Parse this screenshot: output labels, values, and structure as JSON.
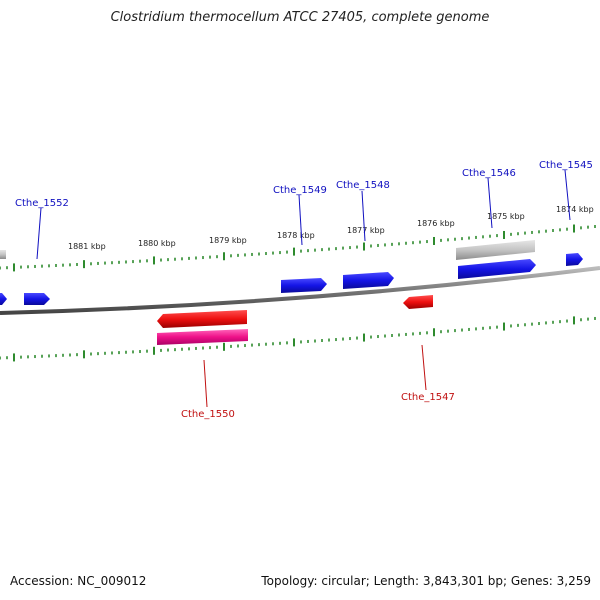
{
  "title": "Clostridium thermocellum ATCC 27405, complete genome",
  "footer": {
    "accession": "Accession: NC_009012",
    "summary": "Topology: circular; Length: 3,843,301 bp; Genes: 3,259"
  },
  "kbp_labels": [
    "1881 kbp",
    "1880 kbp",
    "1879 kbp",
    "1878 kbp",
    "1877 kbp",
    "1876 kbp",
    "1875 kbp",
    "1874 kbp"
  ],
  "gene_labels": [
    {
      "id": "cthe1552",
      "text": "Cthe_1552",
      "color": "#1010c0"
    },
    {
      "id": "cthe1549",
      "text": "Cthe_1549",
      "color": "#1010c0"
    },
    {
      "id": "cthe1548",
      "text": "Cthe_1548",
      "color": "#1010c0"
    },
    {
      "id": "cthe1546",
      "text": "Cthe_1546",
      "color": "#1010c0"
    },
    {
      "id": "cthe1545",
      "text": "Cthe_1545",
      "color": "#1010c0"
    },
    {
      "id": "cthe1550",
      "text": "Cthe_1550",
      "color": "#c01010"
    },
    {
      "id": "cthe1547",
      "text": "Cthe_1547",
      "color": "#c01010"
    }
  ],
  "colors": {
    "forward_gene": "#1a1aee",
    "reverse_gene": "#ee1111",
    "rna_gene": "#ee1188",
    "pseudo_gene": "#b8b8b8",
    "backbone": "#888888",
    "tick": "#2e8b2e"
  }
}
